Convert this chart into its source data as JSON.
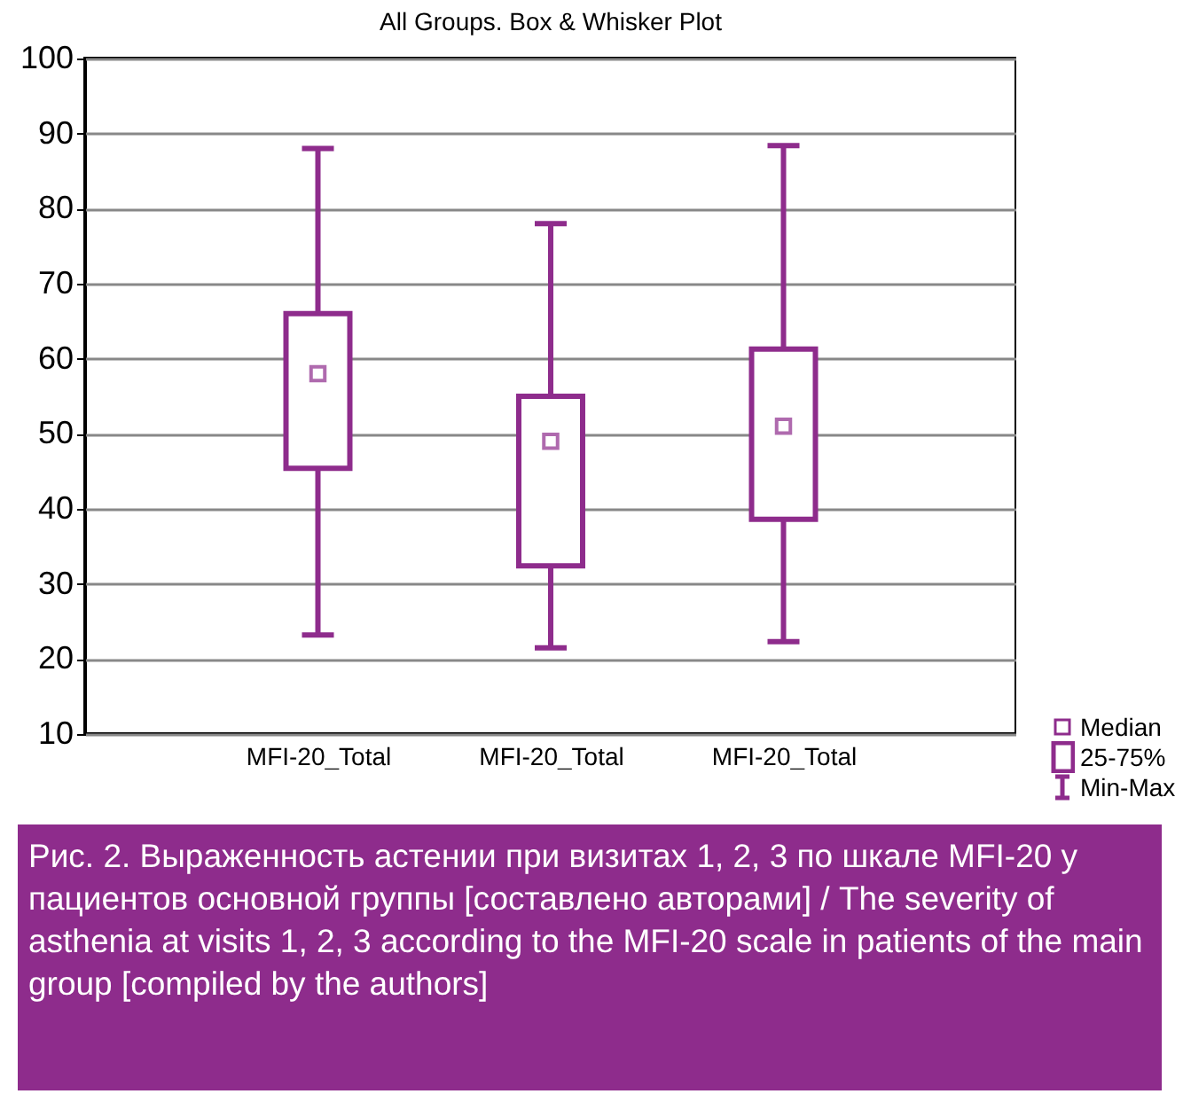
{
  "chart_data": {
    "type": "box",
    "title": "All Groups. Box & Whisker Plot",
    "categories": [
      "MFI-20_Total",
      "MFI-20_Total",
      "MFI-20_Total"
    ],
    "series": [
      {
        "color": "#8e2c8c",
        "boxes": [
          {
            "low": 23.2,
            "q1": 45.4,
            "median": 58,
            "q3": 66,
            "high": 88
          },
          {
            "low": 21.5,
            "q1": 32.4,
            "median": 49,
            "q3": 55,
            "high": 78
          },
          {
            "low": 22.3,
            "q1": 38.6,
            "median": 51,
            "q3": 61.3,
            "high": 88.4
          }
        ]
      }
    ],
    "ylim": [
      10,
      100
    ],
    "yticks": [
      10,
      20,
      30,
      40,
      50,
      60,
      70,
      80,
      90,
      100
    ],
    "grid": "y",
    "marker": "square",
    "annotations": [
      "Median",
      "25-75%",
      "Min-Max",
      "Рис. 2. Выраженность астении при визитах 1, 2, 3 по шкале MFI-20 у пациентов основной группы [составлено авторами] / The severity of asthenia at visits 1, 2, 3 according to the MFI-20 scale in patients of the main group [compiled by the authors]"
    ]
  }
}
